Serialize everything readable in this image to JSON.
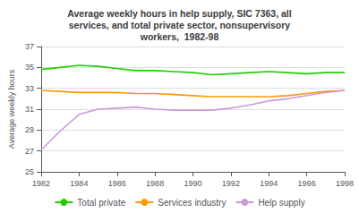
{
  "chart_data": {
    "type": "line",
    "title": "Average weekly hours in help supply, SIC 7363, all\nservices, and total private sector, nonsupervisory\nworkers,  1982-98",
    "ylabel": "Average weekly hours",
    "x": [
      1982,
      1983,
      1984,
      1985,
      1986,
      1987,
      1988,
      1989,
      1990,
      1991,
      1992,
      1993,
      1994,
      1995,
      1996,
      1997,
      1998
    ],
    "series": [
      {
        "name": "Total private",
        "color": "#22cc00",
        "values": [
          34.8,
          35.0,
          35.2,
          35.1,
          34.9,
          34.7,
          34.7,
          34.6,
          34.5,
          34.3,
          34.4,
          34.5,
          34.6,
          34.5,
          34.4,
          34.5,
          34.5
        ]
      },
      {
        "name": "Services industry",
        "color": "#ff9900",
        "values": [
          32.8,
          32.7,
          32.6,
          32.6,
          32.6,
          32.5,
          32.5,
          32.4,
          32.3,
          32.2,
          32.2,
          32.2,
          32.2,
          32.3,
          32.5,
          32.7,
          32.8
        ]
      },
      {
        "name": "Help supply",
        "color": "#cc99dd",
        "values": [
          27.1,
          28.9,
          30.5,
          31.0,
          31.1,
          31.2,
          31.0,
          30.9,
          30.9,
          30.9,
          31.1,
          31.4,
          31.8,
          32.0,
          32.3,
          32.6,
          32.8
        ]
      }
    ],
    "xlim": [
      1982,
      1998
    ],
    "xticks": [
      1982,
      1984,
      1986,
      1988,
      1990,
      1992,
      1994,
      1996,
      1998
    ],
    "ylim": [
      25,
      37
    ],
    "yticks": [
      25,
      27,
      29,
      31,
      33,
      35,
      37
    ],
    "grid": true,
    "legend": "bottom"
  }
}
